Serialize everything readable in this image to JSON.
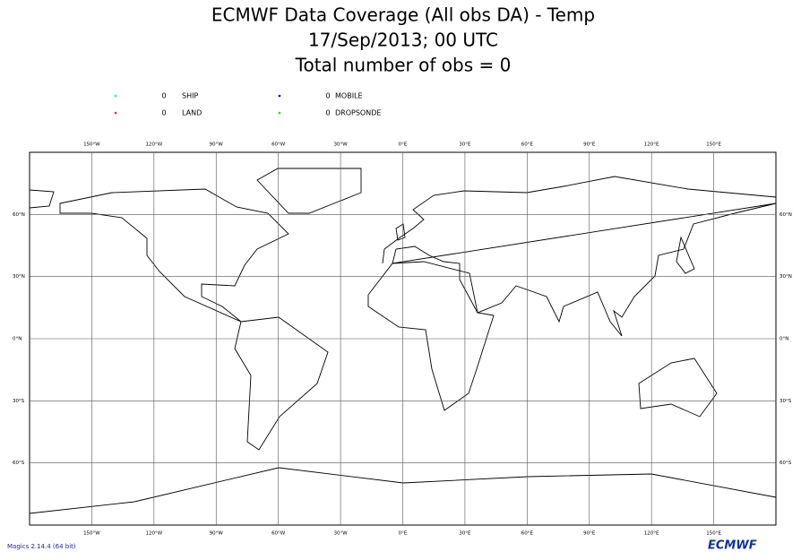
{
  "header": {
    "title": "ECMWF Data Coverage (All obs DA) - Temp",
    "date": "17/Sep/2013; 00 UTC",
    "total": "Total number of obs = 0"
  },
  "legend": [
    {
      "name": "SHIP",
      "count": 0,
      "color": "#00e5ff"
    },
    {
      "name": "LAND",
      "count": 0,
      "color": "#ff2020"
    },
    {
      "name": "MOBILE",
      "count": 0,
      "color": "#0000cc"
    },
    {
      "name": "DROPSONDE",
      "count": 0,
      "color": "#20e020"
    }
  ],
  "map": {
    "lon_range": [
      -180,
      180
    ],
    "lat_range": [
      -90,
      90
    ],
    "lon_ticks": [
      {
        "value": -150,
        "label": "150°W"
      },
      {
        "value": -120,
        "label": "120°W"
      },
      {
        "value": -90,
        "label": "90°W"
      },
      {
        "value": -60,
        "label": "60°W"
      },
      {
        "value": -30,
        "label": "30°W"
      },
      {
        "value": 0,
        "label": "0°E"
      },
      {
        "value": 30,
        "label": "30°E"
      },
      {
        "value": 60,
        "label": "60°E"
      },
      {
        "value": 90,
        "label": "90°E"
      },
      {
        "value": 120,
        "label": "120°E"
      },
      {
        "value": 150,
        "label": "150°E"
      }
    ],
    "lat_ticks": [
      {
        "value": 60,
        "label": "60°N"
      },
      {
        "value": 30,
        "label": "30°N"
      },
      {
        "value": 0,
        "label": "0°N"
      },
      {
        "value": -30,
        "label": "30°S"
      },
      {
        "value": -60,
        "label": "60°S"
      }
    ]
  },
  "footer": {
    "software": "Magics 2.14.4 (64 bit)",
    "logo": "ECMWF"
  }
}
